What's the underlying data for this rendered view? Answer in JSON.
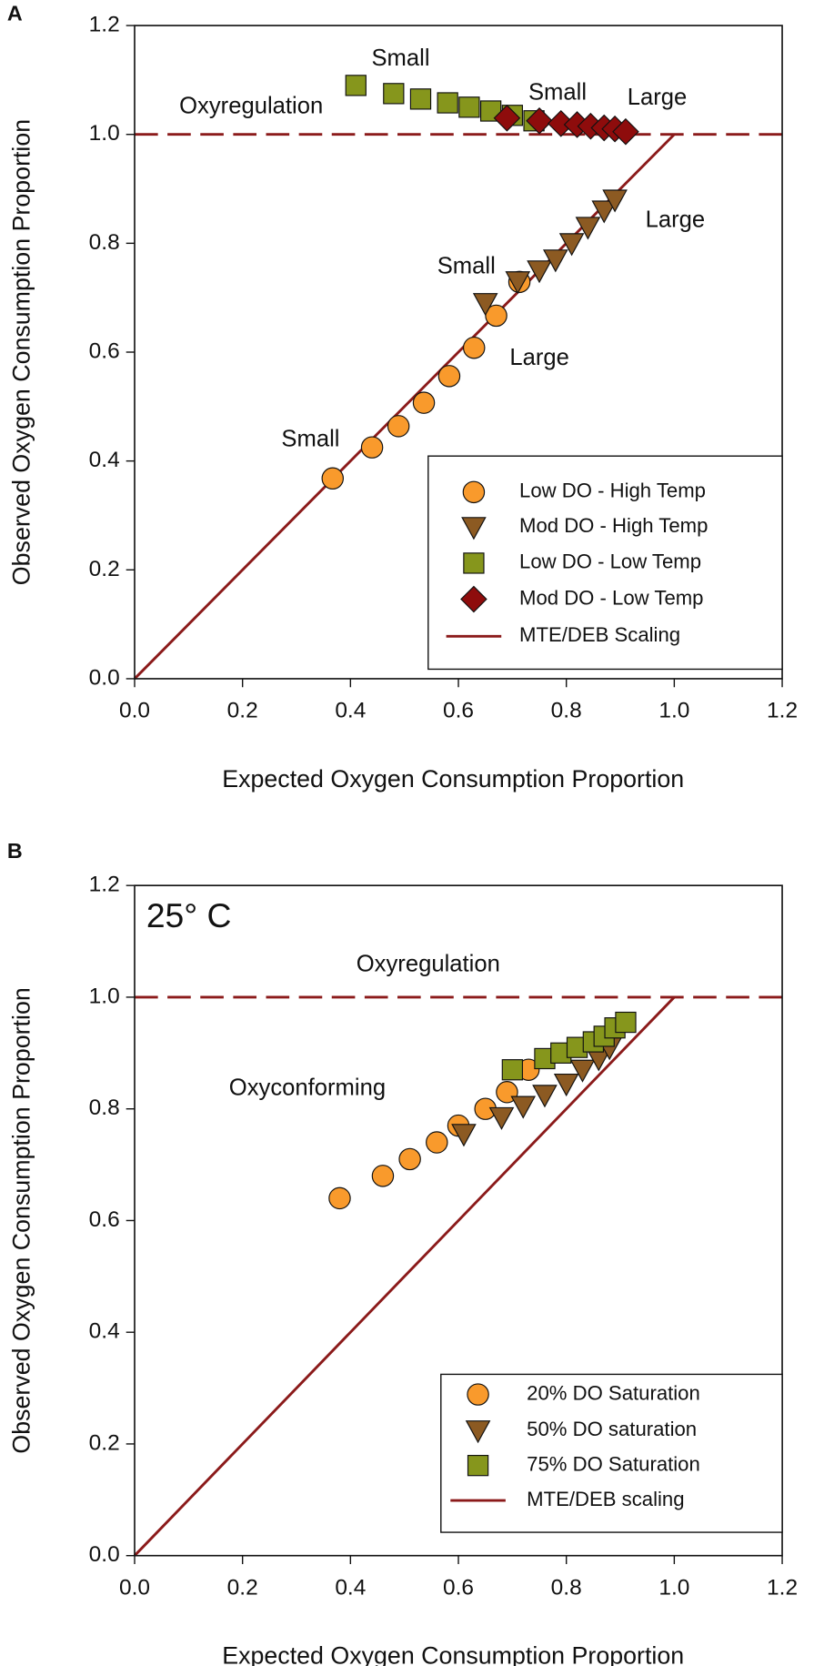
{
  "chart_data": [
    {
      "type": "scatter",
      "panel_label": "A",
      "x_label": "Expected Oxygen Consumption Proportion",
      "y_label": "Observed Oxygen Consumption Proportion",
      "xlim": [
        0,
        1.2
      ],
      "ylim": [
        0,
        1.2
      ],
      "xticks": [
        {
          "value": 0,
          "label": "0.0"
        },
        {
          "value": 0.2,
          "label": "0.2"
        },
        {
          "value": 0.4,
          "label": "0.4"
        },
        {
          "value": 0.6,
          "label": "0.6"
        },
        {
          "value": 0.8,
          "label": "0.8"
        },
        {
          "value": 1.0,
          "label": "1.0"
        },
        {
          "value": 1.2,
          "label": "1.2"
        }
      ],
      "yticks": [
        {
          "value": 0,
          "label": "0.0"
        },
        {
          "value": 0.2,
          "label": "0.2"
        },
        {
          "value": 0.4,
          "label": "0.4"
        },
        {
          "value": 0.6,
          "label": "0.6"
        },
        {
          "value": 0.8,
          "label": "0.8"
        },
        {
          "value": 1.0,
          "label": "1.0"
        },
        {
          "value": 1.2,
          "label": "1.2"
        }
      ],
      "series": [
        {
          "name": "Low DO - High Temp",
          "marker": "circle",
          "color": "#f99a2c",
          "x": [
            0.367,
            0.44,
            0.489,
            0.536,
            0.583,
            0.629,
            0.67,
            0.713
          ],
          "values": [
            0.368,
            0.425,
            0.464,
            0.507,
            0.556,
            0.608,
            0.667,
            0.729
          ]
        },
        {
          "name": "Mod DO - High Temp",
          "marker": "triangle",
          "color": "#8c5a22",
          "x": [
            0.65,
            0.71,
            0.75,
            0.78,
            0.81,
            0.84,
            0.87,
            0.89
          ],
          "values": [
            0.69,
            0.73,
            0.75,
            0.77,
            0.8,
            0.83,
            0.86,
            0.88
          ]
        },
        {
          "name": "Low DO - Low Temp",
          "marker": "square",
          "color": "#86961c",
          "x": [
            0.41,
            0.48,
            0.53,
            0.58,
            0.62,
            0.66,
            0.7,
            0.74
          ],
          "values": [
            1.09,
            1.075,
            1.065,
            1.058,
            1.05,
            1.043,
            1.035,
            1.025
          ]
        },
        {
          "name": "Mod DO - Low Temp",
          "marker": "diamond",
          "color": "#8e0c0c",
          "x": [
            0.69,
            0.75,
            0.79,
            0.82,
            0.845,
            0.87,
            0.89,
            0.91
          ],
          "values": [
            1.03,
            1.025,
            1.02,
            1.018,
            1.015,
            1.012,
            1.01,
            1.005
          ]
        }
      ],
      "reference_lines": [
        {
          "name": "MTE/DEB Scaling",
          "color": "#8b1a1a",
          "x": [
            0,
            1.0
          ],
          "values": [
            0,
            1.0
          ]
        }
      ],
      "threshold": {
        "value": 1.0,
        "color": "#8b1a1a",
        "line_style": "dashed"
      },
      "annotations": [
        "Oxyregulation",
        "Small",
        "Small",
        "Large",
        "Large",
        "Small",
        "Large",
        "Small"
      ]
    },
    {
      "type": "scatter",
      "panel_label": "B",
      "x_label": "Expected Oxygen Consumption Proportion",
      "y_label": "Observed Oxygen Consumption Proportion",
      "xlim": [
        0,
        1.2
      ],
      "ylim": [
        0,
        1.2
      ],
      "xticks": [
        {
          "value": 0,
          "label": "0.0"
        },
        {
          "value": 0.2,
          "label": "0.2"
        },
        {
          "value": 0.4,
          "label": "0.4"
        },
        {
          "value": 0.6,
          "label": "0.6"
        },
        {
          "value": 0.8,
          "label": "0.8"
        },
        {
          "value": 1.0,
          "label": "1.0"
        },
        {
          "value": 1.2,
          "label": "1.2"
        }
      ],
      "yticks": [
        {
          "value": 0,
          "label": "0.0"
        },
        {
          "value": 0.2,
          "label": "0.2"
        },
        {
          "value": 0.4,
          "label": "0.4"
        },
        {
          "value": 0.6,
          "label": "0.6"
        },
        {
          "value": 0.8,
          "label": "0.8"
        },
        {
          "value": 1.0,
          "label": "1.0"
        },
        {
          "value": 1.2,
          "label": "1.2"
        }
      ],
      "series": [
        {
          "name": "20% DO Saturation",
          "marker": "circle",
          "color": "#f99a2c",
          "x": [
            0.38,
            0.46,
            0.51,
            0.56,
            0.6,
            0.65,
            0.69,
            0.73
          ],
          "values": [
            0.64,
            0.68,
            0.71,
            0.74,
            0.77,
            0.8,
            0.83,
            0.87
          ]
        },
        {
          "name": "50% DO saturation",
          "marker": "triangle",
          "color": "#8c5a22",
          "x": [
            0.61,
            0.68,
            0.72,
            0.76,
            0.8,
            0.83,
            0.86,
            0.88
          ],
          "values": [
            0.755,
            0.785,
            0.805,
            0.825,
            0.845,
            0.87,
            0.89,
            0.91
          ]
        },
        {
          "name": "75% DO Saturation",
          "marker": "square",
          "color": "#86961c",
          "x": [
            0.7,
            0.76,
            0.79,
            0.82,
            0.85,
            0.87,
            0.89,
            0.91
          ],
          "values": [
            0.87,
            0.89,
            0.9,
            0.91,
            0.92,
            0.93,
            0.945,
            0.955
          ]
        }
      ],
      "reference_lines": [
        {
          "name": "MTE/DEB scaling",
          "color": "#8b1a1a",
          "x": [
            0,
            1.0
          ],
          "values": [
            0,
            1.0
          ]
        }
      ],
      "threshold": {
        "value": 1.0,
        "color": "#8b1a1a",
        "line_style": "dashed"
      },
      "annotations": [
        "25° C",
        "Oxyregulation",
        "Oxyconforming"
      ]
    }
  ]
}
